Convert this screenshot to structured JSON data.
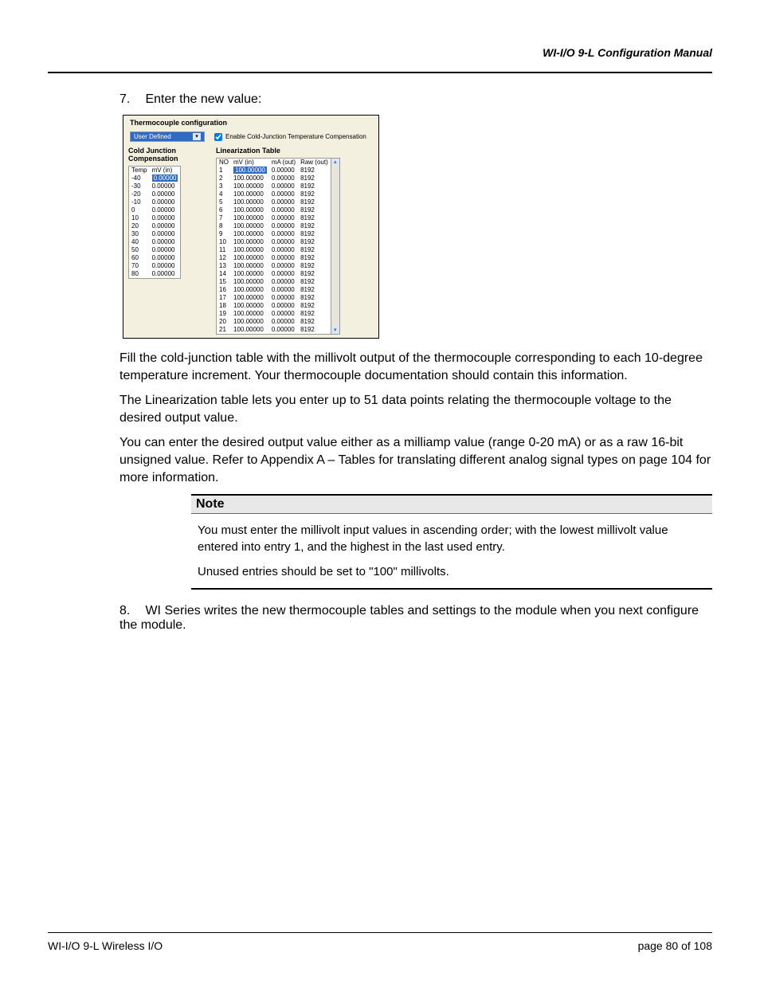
{
  "header": {
    "title": "WI-I/O 9-L Configuration Manual"
  },
  "steps": {
    "s7": {
      "num": "7.",
      "text": "Enter the new value:"
    },
    "s8": {
      "num": "8.",
      "text": "WI Series writes the new thermocouple tables and settings to the module when you next configure the module."
    }
  },
  "screenshot": {
    "title": "Thermocouple configuration",
    "dropdown_label": "User Defined",
    "checkbox_label": "Enable Cold-Junction Temperature Compensation",
    "cj_title": "Cold Junction Compensation",
    "lin_title": "Linearization Table",
    "cj_headers": [
      "Temp",
      "mV (in)"
    ],
    "cj_rows": [
      [
        "-40",
        "0.00000"
      ],
      [
        "-30",
        "0.00000"
      ],
      [
        "-20",
        "0.00000"
      ],
      [
        "-10",
        "0.00000"
      ],
      [
        "0",
        "0.00000"
      ],
      [
        "10",
        "0.00000"
      ],
      [
        "20",
        "0.00000"
      ],
      [
        "30",
        "0.00000"
      ],
      [
        "40",
        "0.00000"
      ],
      [
        "50",
        "0.00000"
      ],
      [
        "60",
        "0.00000"
      ],
      [
        "70",
        "0.00000"
      ],
      [
        "80",
        "0.00000"
      ]
    ],
    "cj_highlight_row_index": 0,
    "cj_highlight_value": "0.00000",
    "lin_headers": [
      "NO",
      "mV (in)",
      "mA (out)",
      "Raw (out)"
    ],
    "lin_rows": [
      [
        "1",
        "100.00000",
        "0.00000",
        "8192"
      ],
      [
        "2",
        "100.00000",
        "0.00000",
        "8192"
      ],
      [
        "3",
        "100.00000",
        "0.00000",
        "8192"
      ],
      [
        "4",
        "100.00000",
        "0.00000",
        "8192"
      ],
      [
        "5",
        "100.00000",
        "0.00000",
        "8192"
      ],
      [
        "6",
        "100.00000",
        "0.00000",
        "8192"
      ],
      [
        "7",
        "100.00000",
        "0.00000",
        "8192"
      ],
      [
        "8",
        "100.00000",
        "0.00000",
        "8192"
      ],
      [
        "9",
        "100.00000",
        "0.00000",
        "8192"
      ],
      [
        "10",
        "100.00000",
        "0.00000",
        "8192"
      ],
      [
        "11",
        "100.00000",
        "0.00000",
        "8192"
      ],
      [
        "12",
        "100.00000",
        "0.00000",
        "8192"
      ],
      [
        "13",
        "100.00000",
        "0.00000",
        "8192"
      ],
      [
        "14",
        "100.00000",
        "0.00000",
        "8192"
      ],
      [
        "15",
        "100.00000",
        "0.00000",
        "8192"
      ],
      [
        "16",
        "100.00000",
        "0.00000",
        "8192"
      ],
      [
        "17",
        "100.00000",
        "0.00000",
        "8192"
      ],
      [
        "18",
        "100.00000",
        "0.00000",
        "8192"
      ],
      [
        "19",
        "100.00000",
        "0.00000",
        "8192"
      ],
      [
        "20",
        "100.00000",
        "0.00000",
        "8192"
      ],
      [
        "21",
        "100.00000",
        "0.00000",
        "8192"
      ]
    ],
    "lin_highlight_row_index": 0,
    "lin_highlight_value": "100.00000"
  },
  "paragraphs": {
    "p1": "Fill the cold-junction table with the millivolt output of the thermocouple corresponding to each 10-degree temperature increment. Your thermocouple documentation should contain this information.",
    "p2": "The Linearization table lets you enter up to 51 data points relating the thermocouple voltage to the desired output value.",
    "p3": "You can enter the desired output value either as a milliamp value (range 0-20 mA) or as a raw 16-bit unsigned value. Refer to Appendix A – Tables for translating different analog signal types on page 104 for more information."
  },
  "note": {
    "title": "Note",
    "body1": "You must enter the millivolt input values in ascending order; with the lowest millivolt value entered into entry 1, and the highest in the last used entry.",
    "body2": "Unused entries should be set to \"100\" millivolts."
  },
  "footer": {
    "left": "WI-I/O 9-L Wireless I/O",
    "right": "page  80 of 108"
  },
  "colors": {
    "highlight_bg": "#316ac5",
    "panel_bg": "#f4f0e0"
  }
}
